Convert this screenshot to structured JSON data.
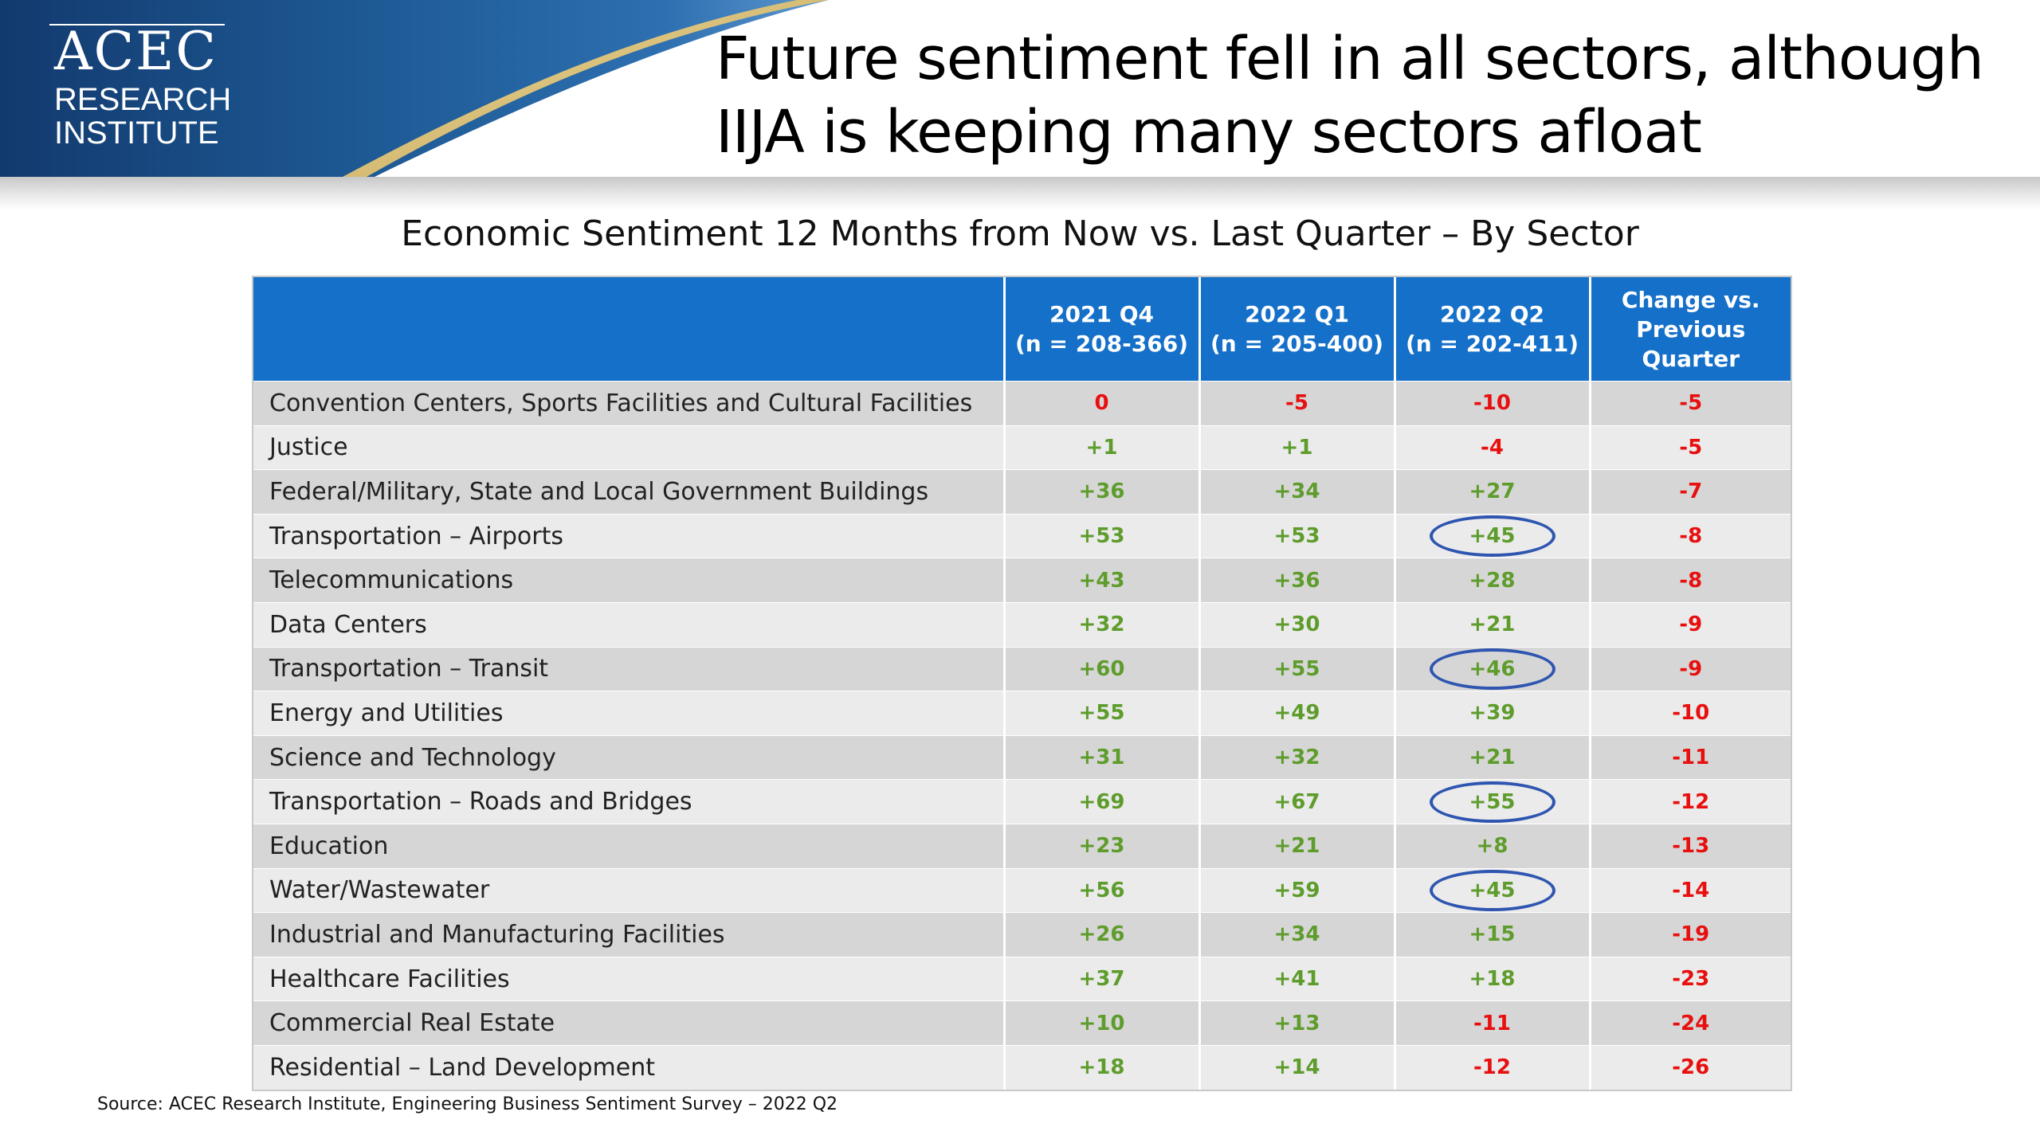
{
  "logo": {
    "name": "ACEC",
    "line1": "RESEARCH",
    "line2": "INSTITUTE"
  },
  "title": {
    "line1": "Future sentiment fell in all sectors, although",
    "line2": "IIJA is keeping many sectors afloat"
  },
  "subtitle": "Economic Sentiment 12 Months from Now vs. Last Quarter – By Sector",
  "colors": {
    "header_blue": "#1570c9",
    "positive": "#5e9c2c",
    "negative": "#e80f0f",
    "circle": "#2e55b0"
  },
  "chart_data": {
    "type": "table",
    "columns": [
      {
        "line1": "",
        "line2": ""
      },
      {
        "line1": "2021 Q4",
        "line2": "(n = 208-366)"
      },
      {
        "line1": "2022 Q1",
        "line2": "(n = 205-400)"
      },
      {
        "line1": "2022 Q2",
        "line2": "(n = 202-411)"
      },
      {
        "line1": "Change vs.",
        "line2": "Previous",
        "line3": "Quarter"
      }
    ],
    "rows": [
      {
        "sector": "Convention Centers, Sports Facilities and Cultural Facilities",
        "q4_2021": "0",
        "q1_2022": "-5",
        "q2_2022": "-10",
        "change": "-5",
        "circled": false
      },
      {
        "sector": "Justice",
        "q4_2021": "+1",
        "q1_2022": "+1",
        "q2_2022": "-4",
        "change": "-5",
        "circled": false
      },
      {
        "sector": "Federal/Military, State and Local Government Buildings",
        "q4_2021": "+36",
        "q1_2022": "+34",
        "q2_2022": "+27",
        "change": "-7",
        "circled": false
      },
      {
        "sector": "Transportation – Airports",
        "q4_2021": "+53",
        "q1_2022": "+53",
        "q2_2022": "+45",
        "change": "-8",
        "circled": true
      },
      {
        "sector": "Telecommunications",
        "q4_2021": "+43",
        "q1_2022": "+36",
        "q2_2022": "+28",
        "change": "-8",
        "circled": false
      },
      {
        "sector": "Data Centers",
        "q4_2021": "+32",
        "q1_2022": "+30",
        "q2_2022": "+21",
        "change": "-9",
        "circled": false
      },
      {
        "sector": "Transportation – Transit",
        "q4_2021": "+60",
        "q1_2022": "+55",
        "q2_2022": "+46",
        "change": "-9",
        "circled": true
      },
      {
        "sector": "Energy and Utilities",
        "q4_2021": "+55",
        "q1_2022": "+49",
        "q2_2022": "+39",
        "change": "-10",
        "circled": false
      },
      {
        "sector": "Science and Technology",
        "q4_2021": "+31",
        "q1_2022": "+32",
        "q2_2022": "+21",
        "change": "-11",
        "circled": false
      },
      {
        "sector": "Transportation – Roads and Bridges",
        "q4_2021": "+69",
        "q1_2022": "+67",
        "q2_2022": "+55",
        "change": "-12",
        "circled": true
      },
      {
        "sector": "Education",
        "q4_2021": "+23",
        "q1_2022": "+21",
        "q2_2022": "+8",
        "change": "-13",
        "circled": false
      },
      {
        "sector": "Water/Wastewater",
        "q4_2021": "+56",
        "q1_2022": "+59",
        "q2_2022": "+45",
        "change": "-14",
        "circled": true
      },
      {
        "sector": "Industrial and Manufacturing Facilities",
        "q4_2021": "+26",
        "q1_2022": "+34",
        "q2_2022": "+15",
        "change": "-19",
        "circled": false
      },
      {
        "sector": "Healthcare Facilities",
        "q4_2021": "+37",
        "q1_2022": "+41",
        "q2_2022": "+18",
        "change": "-23",
        "circled": false
      },
      {
        "sector": "Commercial Real Estate",
        "q4_2021": "+10",
        "q1_2022": "+13",
        "q2_2022": "-11",
        "change": "-24",
        "circled": false
      },
      {
        "sector": "Residential – Land Development",
        "q4_2021": "+18",
        "q1_2022": "+14",
        "q2_2022": "-12",
        "change": "-26",
        "circled": false
      }
    ]
  },
  "source": "Source: ACEC Research Institute, Engineering Business Sentiment Survey – 2022 Q2"
}
